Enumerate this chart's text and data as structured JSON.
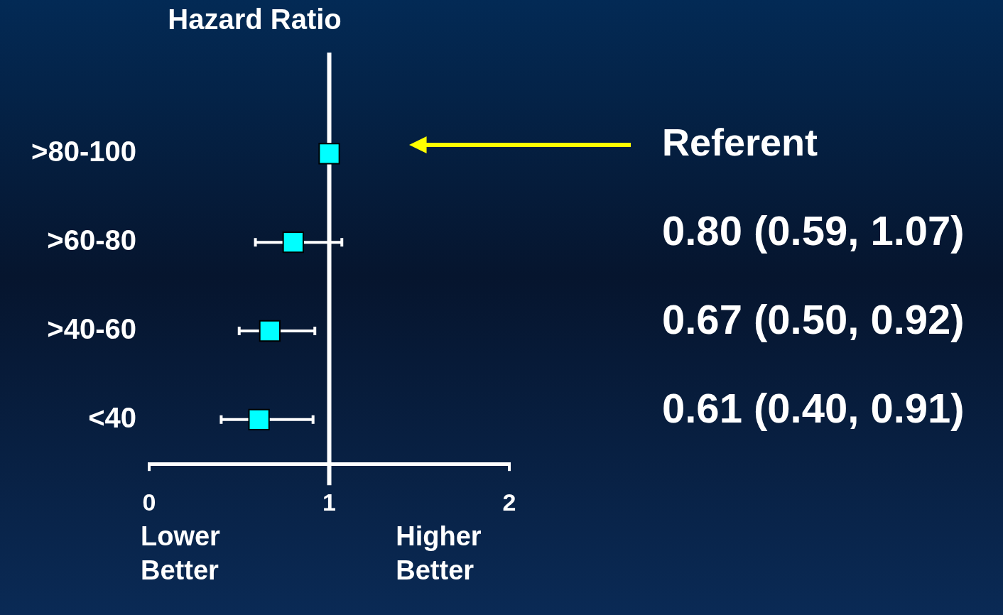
{
  "chart_data": {
    "type": "scatter",
    "orientation": "horizontal",
    "title": "Hazard Ratio",
    "categories": [
      ">80-100",
      ">60-80",
      ">40-60",
      "<40"
    ],
    "values": [
      1,
      0.8,
      0.67,
      0.61
    ],
    "errors": [
      null,
      [
        0.59,
        1.07
      ],
      [
        0.5,
        0.92
      ],
      [
        0.4,
        0.91
      ]
    ],
    "color": "#00ffff",
    "marker": "square",
    "xlim": [
      0,
      2
    ],
    "xticks": [
      0,
      1,
      2
    ],
    "ref_lines": [
      {
        "axis": "x",
        "value": 1,
        "color": "#ffffff"
      }
    ],
    "annotations": [
      "Lower\nBetter",
      "Higher\nBetter",
      "Referent",
      "0.80 (0.59, 1.07)",
      "0.67 (0.50, 0.92)",
      "0.61 (0.40, 0.91)"
    ],
    "grid": false,
    "legend": false
  }
}
